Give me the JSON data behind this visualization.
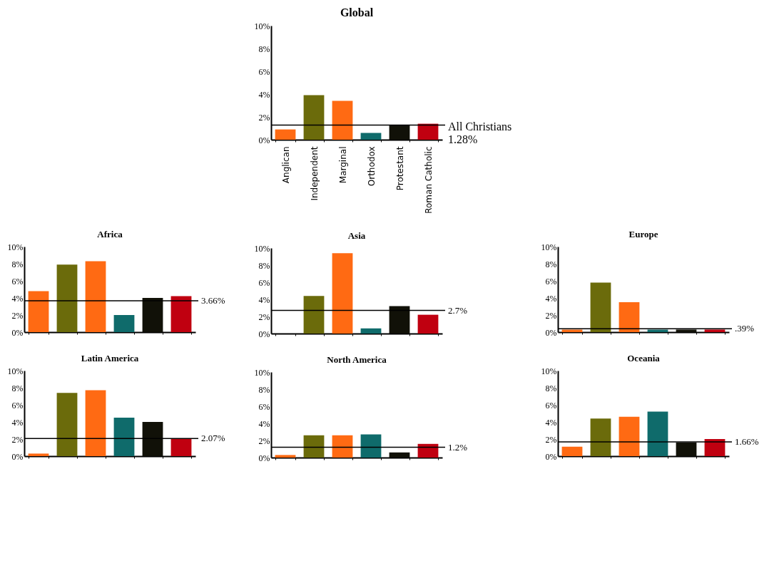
{
  "chart_data": [
    {
      "type": "bar",
      "title": "Global",
      "categories": [
        "Anglican",
        "Independent",
        "Marginal",
        "Orthodox",
        "Protestant",
        "Roman Catholic"
      ],
      "colors": [
        "#ff6a13",
        "#6b6b0b",
        "#ff6a13",
        "#0f6b6b",
        "#111108",
        "#c00010"
      ],
      "values": [
        0.9,
        3.9,
        3.4,
        0.6,
        1.3,
        1.4
      ],
      "ylim": [
        0,
        10
      ],
      "yticks": [
        {
          "value": 0,
          "label": "0%"
        },
        {
          "value": 2,
          "label": "2%"
        },
        {
          "value": 4,
          "label": "4%"
        },
        {
          "value": 6,
          "label": "6%"
        },
        {
          "value": 8,
          "label": "8%"
        },
        {
          "value": 10,
          "label": "10%"
        }
      ],
      "ref_lines": [
        {
          "axis": "y",
          "value": 1.28,
          "label": "All Christians\n1.28%"
        }
      ]
    },
    {
      "type": "bar",
      "title": "Africa",
      "categories": [
        null,
        null,
        null,
        null,
        null,
        null
      ],
      "colors": [
        "#ff6a13",
        "#6b6b0b",
        "#ff6a13",
        "#0f6b6b",
        "#111108",
        "#c00010"
      ],
      "values": [
        4.8,
        7.9,
        8.3,
        2.0,
        4.0,
        4.2
      ],
      "ylim": [
        0,
        10
      ],
      "yticks": [
        {
          "value": 0,
          "label": "0%"
        },
        {
          "value": 2,
          "label": "2%"
        },
        {
          "value": 4,
          "label": "4%"
        },
        {
          "value": 6,
          "label": "6%"
        },
        {
          "value": 8,
          "label": "8%"
        },
        {
          "value": 10,
          "label": "10%"
        }
      ],
      "ref_lines": [
        {
          "axis": "y",
          "value": 3.66,
          "label": "3.66%"
        }
      ]
    },
    {
      "type": "bar",
      "title": "Asia",
      "categories": [
        null,
        null,
        null,
        null,
        null,
        null
      ],
      "colors": [
        "#ff6a13",
        "#6b6b0b",
        "#ff6a13",
        "#0f6b6b",
        "#111108",
        "#c00010"
      ],
      "values": [
        0,
        4.4,
        9.4,
        0.6,
        3.2,
        2.2
      ],
      "ylim": [
        0,
        10
      ],
      "yticks": [
        {
          "value": 0,
          "label": "0%"
        },
        {
          "value": 2,
          "label": "2%"
        },
        {
          "value": 4,
          "label": "4%"
        },
        {
          "value": 6,
          "label": "6%"
        },
        {
          "value": 8,
          "label": "8%"
        },
        {
          "value": 10,
          "label": "10%"
        }
      ],
      "ref_lines": [
        {
          "axis": "y",
          "value": 2.7,
          "label": "2.7%"
        }
      ]
    },
    {
      "type": "bar",
      "title": "Europe",
      "categories": [
        null,
        null,
        null,
        null,
        null,
        null
      ],
      "colors": [
        "#ff6a13",
        "#6b6b0b",
        "#ff6a13",
        "#0f6b6b",
        "#111108",
        "#c00010"
      ],
      "values": [
        0.3,
        5.8,
        3.5,
        0.3,
        0.3,
        0.3
      ],
      "ylim": [
        0,
        10
      ],
      "yticks": [
        {
          "value": 0,
          "label": "0%"
        },
        {
          "value": 2,
          "label": "2%"
        },
        {
          "value": 4,
          "label": "4%"
        },
        {
          "value": 6,
          "label": "6%"
        },
        {
          "value": 8,
          "label": "8%"
        },
        {
          "value": 10,
          "label": "10%"
        }
      ],
      "ref_lines": [
        {
          "axis": "y",
          "value": 0.39,
          "label": ".39%"
        }
      ]
    },
    {
      "type": "bar",
      "title": "Latin America",
      "categories": [
        null,
        null,
        null,
        null,
        null,
        null
      ],
      "colors": [
        "#ff6a13",
        "#6b6b0b",
        "#ff6a13",
        "#0f6b6b",
        "#111108",
        "#c00010"
      ],
      "values": [
        0.3,
        7.4,
        7.7,
        4.5,
        4.0,
        2.0
      ],
      "ylim": [
        0,
        10
      ],
      "yticks": [
        {
          "value": 0,
          "label": "0%"
        },
        {
          "value": 2,
          "label": "2%"
        },
        {
          "value": 4,
          "label": "4%"
        },
        {
          "value": 6,
          "label": "6%"
        },
        {
          "value": 8,
          "label": "8%"
        },
        {
          "value": 10,
          "label": "10%"
        }
      ],
      "ref_lines": [
        {
          "axis": "y",
          "value": 2.07,
          "label": "2.07%"
        }
      ]
    },
    {
      "type": "bar",
      "title": "North America",
      "categories": [
        null,
        null,
        null,
        null,
        null,
        null
      ],
      "colors": [
        "#ff6a13",
        "#6b6b0b",
        "#ff6a13",
        "#0f6b6b",
        "#111108",
        "#c00010"
      ],
      "values": [
        0.3,
        2.6,
        2.6,
        2.7,
        0.6,
        1.6
      ],
      "ylim": [
        0,
        10
      ],
      "yticks": [
        {
          "value": 0,
          "label": "0%"
        },
        {
          "value": 2,
          "label": "2%"
        },
        {
          "value": 4,
          "label": "4%"
        },
        {
          "value": 6,
          "label": "6%"
        },
        {
          "value": 8,
          "label": "8%"
        },
        {
          "value": 10,
          "label": "10%"
        }
      ],
      "ref_lines": [
        {
          "axis": "y",
          "value": 1.2,
          "label": "1.2%"
        }
      ]
    },
    {
      "type": "bar",
      "title": "Oceania",
      "categories": [
        null,
        null,
        null,
        null,
        null,
        null
      ],
      "colors": [
        "#ff6a13",
        "#6b6b0b",
        "#ff6a13",
        "#0f6b6b",
        "#111108",
        "#c00010"
      ],
      "values": [
        1.1,
        4.4,
        4.6,
        5.2,
        1.6,
        2.0
      ],
      "ylim": [
        0,
        10
      ],
      "yticks": [
        {
          "value": 0,
          "label": "0%"
        },
        {
          "value": 2,
          "label": "2%"
        },
        {
          "value": 4,
          "label": "4%"
        },
        {
          "value": 6,
          "label": "6%"
        },
        {
          "value": 8,
          "label": "8%"
        },
        {
          "value": 10,
          "label": "10%"
        }
      ],
      "ref_lines": [
        {
          "axis": "y",
          "value": 1.66,
          "label": "1.66%"
        }
      ]
    }
  ]
}
